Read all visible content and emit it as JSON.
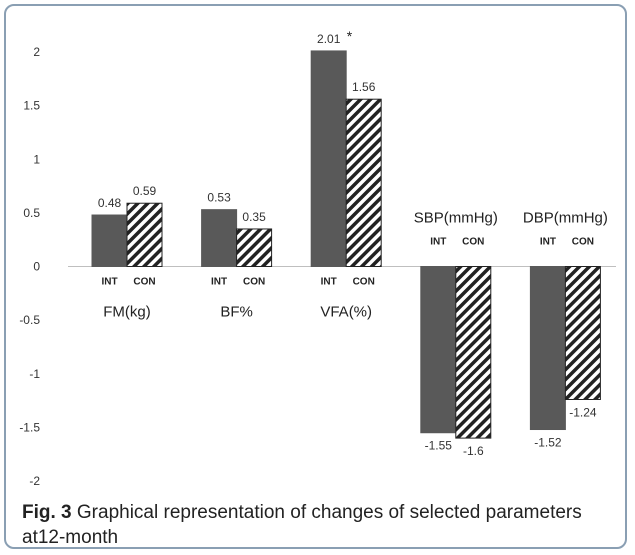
{
  "caption": {
    "figure_label": "Fig. 3",
    "text": "Graphical representation of changes of selected parameters at12-month"
  },
  "colors": {
    "int_bar": "#595959",
    "con_stripe": "#222222",
    "frame": "#8a9fb3",
    "text": "#333333"
  },
  "chart_data": {
    "type": "bar",
    "categories": [
      "FM(kg)",
      "BF%",
      "VFA(%)",
      "SBP(mmHg)",
      "DBP(mmHg)"
    ],
    "series": [
      {
        "name": "INT",
        "values": [
          0.48,
          0.53,
          2.01,
          -1.55,
          -1.52
        ],
        "labels": [
          "0.48",
          "0.53",
          "2.01",
          "-1.55",
          "-1.52"
        ]
      },
      {
        "name": "CON",
        "values": [
          0.59,
          0.35,
          1.56,
          -1.6,
          -1.24
        ],
        "labels": [
          "0.59",
          "0.35",
          "1.56",
          "-1.6",
          "-1.24"
        ]
      }
    ],
    "annotations": [
      {
        "category": "VFA(%)",
        "series": "INT",
        "text": "*"
      }
    ],
    "ylim": [
      -2,
      2
    ],
    "yticks": [
      "-2",
      "-1.5",
      "-1",
      "-0.5",
      "0",
      "0.5",
      "1",
      "1.5",
      "2"
    ],
    "category_label_position": [
      "below-axis",
      "below-axis",
      "below-axis",
      "above-axis",
      "above-axis"
    ],
    "grid": false,
    "legend": "none",
    "xlabel": "",
    "ylabel": ""
  }
}
